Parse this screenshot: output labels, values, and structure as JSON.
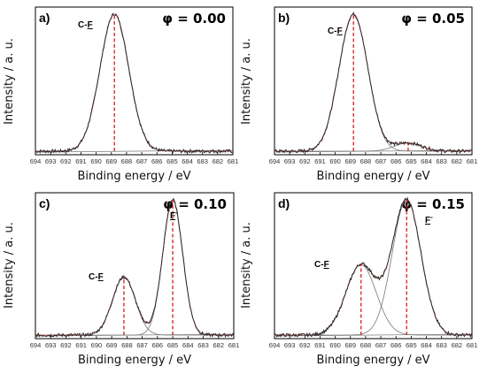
{
  "chart_data": [
    {
      "type": "line",
      "panel": "a)",
      "phi_label": "φ = 0.00",
      "xlabel": "Binding energy / eV",
      "ylabel": "Intensity / a. u.",
      "x_ticks": [
        "694",
        "693",
        "692",
        "691",
        "690",
        "689",
        "688",
        "687",
        "686",
        "685",
        "684",
        "683",
        "682",
        "681"
      ],
      "xlim": [
        694,
        681
      ],
      "peaks": [
        {
          "label": "C-F",
          "label_main": "C-",
          "label_underlined": "F",
          "label_sup": "",
          "center": 688.8,
          "height": 1.0,
          "width": 0.95
        }
      ],
      "peak_lines": [
        688.8
      ]
    },
    {
      "type": "line",
      "panel": "b)",
      "phi_label": "φ = 0.05",
      "xlabel": "Binding energy / eV",
      "ylabel": "Intensity / a. u.",
      "x_ticks": [
        "694",
        "693",
        "692",
        "691",
        "690",
        "689",
        "688",
        "687",
        "686",
        "685",
        "684",
        "683",
        "682",
        "681"
      ],
      "xlim": [
        694,
        681
      ],
      "peaks": [
        {
          "label": "C-F",
          "label_main": "C-",
          "label_underlined": "F",
          "label_sup": "",
          "center": 688.8,
          "height": 1.0,
          "width": 0.95
        },
        {
          "label": "",
          "label_main": "",
          "label_underlined": "",
          "label_sup": "",
          "center": 685.2,
          "height": 0.06,
          "width": 0.9
        }
      ],
      "peak_lines": [
        688.8,
        685.2
      ]
    },
    {
      "type": "line",
      "panel": "c)",
      "phi_label": "φ = 0.10",
      "xlabel": "Binding energy / eV",
      "ylabel": "Intensity / a. u.",
      "x_ticks": [
        "694",
        "693",
        "692",
        "691",
        "690",
        "689",
        "688",
        "687",
        "686",
        "685",
        "684",
        "683",
        "682",
        "681"
      ],
      "xlim": [
        694,
        681
      ],
      "peaks": [
        {
          "label": "C-F",
          "label_main": "C-",
          "label_underlined": "F",
          "label_sup": "",
          "center": 688.2,
          "height": 0.43,
          "width": 0.75
        },
        {
          "label": "F-",
          "label_main": "",
          "label_underlined": "F",
          "label_sup": "-",
          "center": 685.0,
          "height": 1.0,
          "width": 0.65
        }
      ],
      "peak_lines": [
        688.2,
        685.0
      ]
    },
    {
      "type": "line",
      "panel": "d)",
      "phi_label": "φ = 0.15",
      "xlabel": "Binding energy / eV",
      "ylabel": "Intensity / a. u.",
      "x_ticks": [
        "694",
        "693",
        "692",
        "691",
        "690",
        "689",
        "688",
        "687",
        "686",
        "685",
        "684",
        "683",
        "682",
        "681"
      ],
      "xlim": [
        694,
        681
      ],
      "peaks": [
        {
          "label": "C-F",
          "label_main": "C-",
          "label_underlined": "F",
          "label_sup": "",
          "center": 688.3,
          "height": 0.52,
          "width": 1.0
        },
        {
          "label": "F-",
          "label_main": "",
          "label_underlined": "F",
          "label_sup": "-",
          "center": 685.3,
          "height": 1.0,
          "width": 0.95
        }
      ],
      "peak_lines": [
        688.3,
        685.3
      ]
    }
  ],
  "colors": {
    "envelope": "#222222",
    "component": "#777777",
    "fit": "#c06060",
    "peak_marker": "#d02020",
    "axis": "#000000"
  }
}
